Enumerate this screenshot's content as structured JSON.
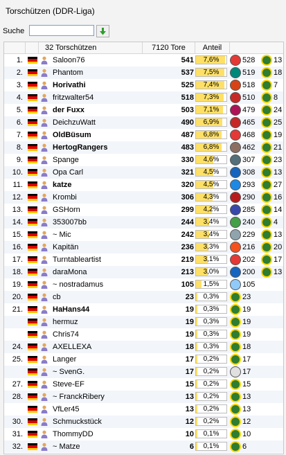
{
  "title": "Torschützen (DDR-Liga)",
  "search": {
    "label": "Suche",
    "value": ""
  },
  "columns": {
    "players": "32 Torschützen",
    "goals": "7120 Tore",
    "share": "Anteil"
  },
  "colors": {
    "bar_fill": "#ffe066",
    "alt_row": "#f2f5fa",
    "flag_black": "#000000",
    "flag_red": "#dd0000",
    "flag_gold": "#ffce00"
  },
  "rows": [
    {
      "rank": "1.",
      "name": "Saloon76",
      "bold": false,
      "goals": "541",
      "share": "7,6%",
      "crest1": "#e53935",
      "n1": "528",
      "crest2": "ball",
      "n2": "13"
    },
    {
      "rank": "2.",
      "name": "Phantom",
      "bold": false,
      "goals": "537",
      "share": "7,5%",
      "crest1": "#00897b",
      "n1": "519",
      "crest2": "ball",
      "n2": "18"
    },
    {
      "rank": "3.",
      "name": "Horivathi",
      "bold": true,
      "goals": "525",
      "share": "7,4%",
      "crest1": "#d84315",
      "n1": "518",
      "crest2": "ball",
      "n2": "7"
    },
    {
      "rank": "4.",
      "name": "fritzwalter54",
      "bold": false,
      "goals": "518",
      "share": "7,3%",
      "crest1": "#c62828",
      "n1": "510",
      "crest2": "ball",
      "n2": "8"
    },
    {
      "rank": "5.",
      "name": "der Fuxx",
      "bold": true,
      "goals": "503",
      "share": "7,1%",
      "crest1": "#ad1457",
      "n1": "479",
      "crest2": "ball",
      "n2": "24"
    },
    {
      "rank": "6.",
      "name": "DeichzuWatt",
      "bold": false,
      "goals": "490",
      "share": "6,9%",
      "crest1": "#c62828",
      "n1": "465",
      "crest2": "ball",
      "n2": "25"
    },
    {
      "rank": "7.",
      "name": "OldBüsum",
      "bold": true,
      "goals": "487",
      "share": "6,8%",
      "crest1": "#e53935",
      "n1": "468",
      "crest2": "ball",
      "n2": "19"
    },
    {
      "rank": "8.",
      "name": "HertogRangers",
      "bold": true,
      "goals": "483",
      "share": "6,8%",
      "crest1": "#8d6e63",
      "n1": "462",
      "crest2": "ball",
      "n2": "21"
    },
    {
      "rank": "9.",
      "name": "Spange",
      "bold": false,
      "goals": "330",
      "share": "4,6%",
      "crest1": "#546e7a",
      "n1": "307",
      "crest2": "ball",
      "n2": "23"
    },
    {
      "rank": "10.",
      "name": "Opa Carl",
      "bold": false,
      "goals": "321",
      "share": "4,5%",
      "crest1": "#1565c0",
      "n1": "308",
      "crest2": "ball",
      "n2": "13"
    },
    {
      "rank": "11.",
      "name": "katze",
      "bold": true,
      "goals": "320",
      "share": "4,5%",
      "crest1": "#1e88e5",
      "n1": "293",
      "crest2": "ball",
      "n2": "27"
    },
    {
      "rank": "12.",
      "name": "Krombi",
      "bold": false,
      "goals": "306",
      "share": "4,3%",
      "crest1": "#b71c1c",
      "n1": "290",
      "crest2": "ball",
      "n2": "16"
    },
    {
      "rank": "13.",
      "name": "GSHorn",
      "bold": false,
      "goals": "299",
      "share": "4,2%",
      "crest1": "#3949ab",
      "n1": "285",
      "crest2": "ball",
      "n2": "14"
    },
    {
      "rank": "14.",
      "name": "353007bb",
      "bold": false,
      "goals": "244",
      "share": "3,4%",
      "crest1": "#43a047",
      "n1": "240",
      "crest2": "ball",
      "n2": "4"
    },
    {
      "rank": "15.",
      "name": "~ Mic",
      "bold": false,
      "goals": "242",
      "share": "3,4%",
      "crest1": "#90a4ae",
      "n1": "229",
      "crest2": "ball",
      "n2": "13"
    },
    {
      "rank": "16.",
      "name": "Kapitän",
      "bold": false,
      "goals": "236",
      "share": "3,3%",
      "crest1": "#f4511e",
      "n1": "216",
      "crest2": "ball",
      "n2": "20"
    },
    {
      "rank": "17.",
      "name": "Turntableartist",
      "bold": false,
      "goals": "219",
      "share": "3,1%",
      "crest1": "#e53935",
      "n1": "202",
      "crest2": "ball",
      "n2": "17"
    },
    {
      "rank": "18.",
      "name": "daraMona",
      "bold": false,
      "goals": "213",
      "share": "3,0%",
      "crest1": "#1565c0",
      "n1": "200",
      "crest2": "ball",
      "n2": "13"
    },
    {
      "rank": "19.",
      "name": "~ nostradamus",
      "bold": false,
      "goals": "105",
      "share": "1,5%",
      "crest1": "#90caf9",
      "n1": "105",
      "crest2": "",
      "n2": ""
    },
    {
      "rank": "20.",
      "name": "cb",
      "bold": false,
      "goals": "23",
      "share": "0,3%",
      "crest1": "ball",
      "n1": "23",
      "crest2": "",
      "n2": ""
    },
    {
      "rank": "21.",
      "name": "HaHans44",
      "bold": true,
      "goals": "19",
      "share": "0,3%",
      "crest1": "ball",
      "n1": "19",
      "crest2": "",
      "n2": ""
    },
    {
      "rank": "",
      "name": "hermuz",
      "bold": false,
      "goals": "19",
      "share": "0,3%",
      "crest1": "ball",
      "n1": "19",
      "crest2": "",
      "n2": ""
    },
    {
      "rank": "",
      "name": "Chris74",
      "bold": false,
      "goals": "19",
      "share": "0,3%",
      "crest1": "ball",
      "n1": "19",
      "crest2": "",
      "n2": ""
    },
    {
      "rank": "24.",
      "name": "AXELLEXA",
      "bold": false,
      "goals": "18",
      "share": "0,3%",
      "crest1": "ball",
      "n1": "18",
      "crest2": "",
      "n2": ""
    },
    {
      "rank": "25.",
      "name": "Langer",
      "bold": false,
      "goals": "17",
      "share": "0,2%",
      "crest1": "ball",
      "n1": "17",
      "crest2": "",
      "n2": ""
    },
    {
      "rank": "",
      "name": "~ SvenG.",
      "bold": false,
      "goals": "17",
      "share": "0,2%",
      "crest1": "#e0e0e0",
      "n1": "17",
      "crest2": "",
      "n2": ""
    },
    {
      "rank": "27.",
      "name": "Steve-EF",
      "bold": false,
      "goals": "15",
      "share": "0,2%",
      "crest1": "ball",
      "n1": "15",
      "crest2": "",
      "n2": ""
    },
    {
      "rank": "28.",
      "name": "~ FranckRibery",
      "bold": false,
      "goals": "13",
      "share": "0,2%",
      "crest1": "ball",
      "n1": "13",
      "crest2": "",
      "n2": ""
    },
    {
      "rank": "",
      "name": "VfLer45",
      "bold": false,
      "goals": "13",
      "share": "0,2%",
      "crest1": "ball",
      "n1": "13",
      "crest2": "",
      "n2": ""
    },
    {
      "rank": "30.",
      "name": "Schmuckstück",
      "bold": false,
      "goals": "12",
      "share": "0,2%",
      "crest1": "ball",
      "n1": "12",
      "crest2": "",
      "n2": ""
    },
    {
      "rank": "31.",
      "name": "ThommyDD",
      "bold": false,
      "goals": "10",
      "share": "0,1%",
      "crest1": "ball",
      "n1": "10",
      "crest2": "",
      "n2": ""
    },
    {
      "rank": "32.",
      "name": "~ Matze",
      "bold": false,
      "goals": "6",
      "share": "0,1%",
      "crest1": "ball",
      "n1": "6",
      "crest2": "",
      "n2": ""
    }
  ]
}
